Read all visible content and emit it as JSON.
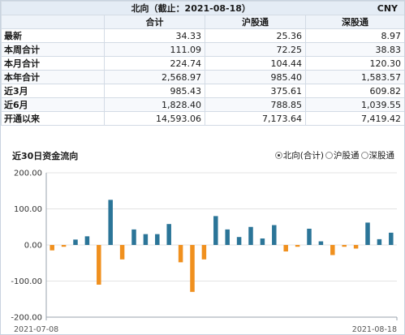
{
  "table": {
    "title": "北向（截止：2021-08-18）",
    "currency": "CNY",
    "columns": [
      "合计",
      "沪股通",
      "深股通"
    ],
    "rows": [
      {
        "label": "最新",
        "values": [
          "34.33",
          "25.36",
          "8.97"
        ]
      },
      {
        "label": "本周合计",
        "values": [
          "111.09",
          "72.25",
          "38.83"
        ]
      },
      {
        "label": "本月合计",
        "values": [
          "224.74",
          "104.44",
          "120.30"
        ]
      },
      {
        "label": "本年合计",
        "values": [
          "2,568.97",
          "985.40",
          "1,583.57"
        ]
      },
      {
        "label": "近3月",
        "values": [
          "985.43",
          "375.61",
          "609.82"
        ]
      },
      {
        "label": "近6月",
        "values": [
          "1,828.40",
          "788.85",
          "1,039.55"
        ]
      },
      {
        "label": "开通以来",
        "values": [
          "14,593.06",
          "7,173.64",
          "7,419.42"
        ]
      }
    ]
  },
  "chart_header": {
    "title": "近30日资金流向",
    "options": [
      {
        "label": "北向(合计)",
        "selected": true
      },
      {
        "label": "沪股通",
        "selected": false
      },
      {
        "label": "深股通",
        "selected": false
      }
    ]
  },
  "colors": {
    "positive": "#2b7598",
    "negative": "#f0901e",
    "grid": "#e3e3e3"
  },
  "chart_data": {
    "type": "bar",
    "title": "",
    "xlabel": "",
    "ylabel": "",
    "ylim": [
      -200,
      200
    ],
    "yticks": [
      "200.00",
      "100.00",
      "0.00",
      "-100.00",
      "-200.00"
    ],
    "ytick_values": [
      200,
      100,
      0,
      -100,
      -200
    ],
    "x_start_label": "2021-07-08",
    "x_end_label": "2021-08-18",
    "values": [
      -15,
      -5,
      15,
      24,
      -110,
      125,
      -40,
      43,
      30,
      30,
      58,
      -48,
      -130,
      -40,
      80,
      43,
      22,
      50,
      18,
      55,
      -18,
      -5,
      45,
      10,
      -28,
      -5,
      -10,
      62,
      16,
      34
    ]
  }
}
